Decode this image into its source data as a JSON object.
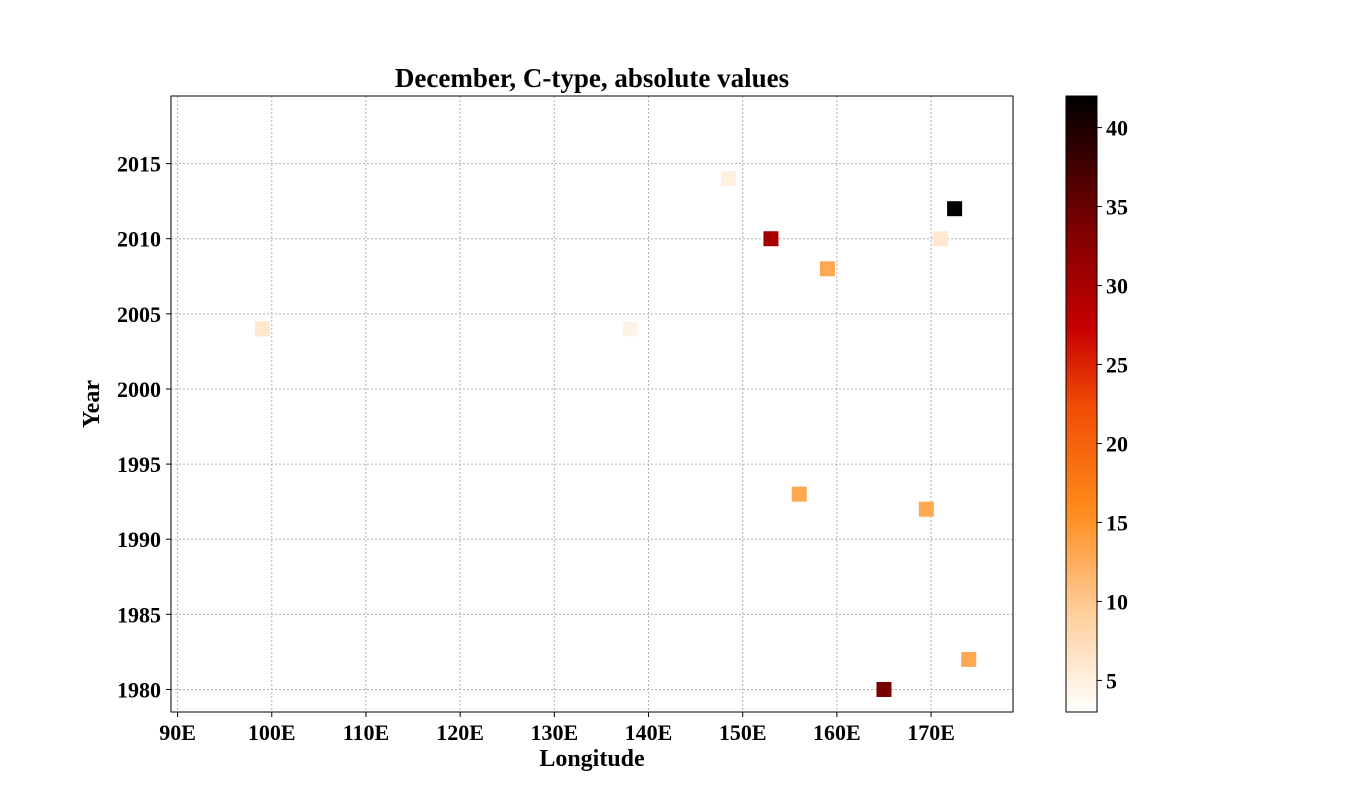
{
  "chart_data": {
    "type": "scatter",
    "title": "December, C-type, absolute values",
    "xlabel": "Longitude",
    "ylabel": "Year",
    "xlim": [
      89.3,
      178.7
    ],
    "ylim": [
      1978.5,
      2019.5
    ],
    "x_ticks": [
      90,
      100,
      110,
      120,
      130,
      140,
      150,
      160,
      170
    ],
    "x_tick_labels": [
      "90E",
      "100E",
      "110E",
      "120E",
      "130E",
      "140E",
      "150E",
      "160E",
      "170E"
    ],
    "y_ticks": [
      1980,
      1985,
      1990,
      1995,
      2000,
      2005,
      2010,
      2015
    ],
    "y_tick_labels": [
      "1980",
      "1985",
      "1990",
      "1995",
      "2000",
      "2005",
      "2010",
      "2015"
    ],
    "grid": true,
    "colormap": "gist_heat_r",
    "colorbar": {
      "min": 3,
      "max": 42,
      "ticks": [
        5,
        10,
        15,
        20,
        25,
        30,
        35,
        40
      ],
      "tick_labels": [
        "5",
        "10",
        "15",
        "20",
        "25",
        "30",
        "35",
        "40"
      ]
    },
    "points": [
      {
        "x": 99.0,
        "y": 2004,
        "value": 6
      },
      {
        "x": 138.0,
        "y": 2004,
        "value": 4.5
      },
      {
        "x": 148.5,
        "y": 2014,
        "value": 5
      },
      {
        "x": 153.0,
        "y": 2010,
        "value": 30
      },
      {
        "x": 159.0,
        "y": 2008,
        "value": 13
      },
      {
        "x": 171.0,
        "y": 2010,
        "value": 6
      },
      {
        "x": 172.5,
        "y": 2012,
        "value": 42
      },
      {
        "x": 156.0,
        "y": 1993,
        "value": 13
      },
      {
        "x": 169.5,
        "y": 1992,
        "value": 13
      },
      {
        "x": 174.0,
        "y": 1982,
        "value": 13
      },
      {
        "x": 165.0,
        "y": 1980,
        "value": 34
      }
    ]
  }
}
